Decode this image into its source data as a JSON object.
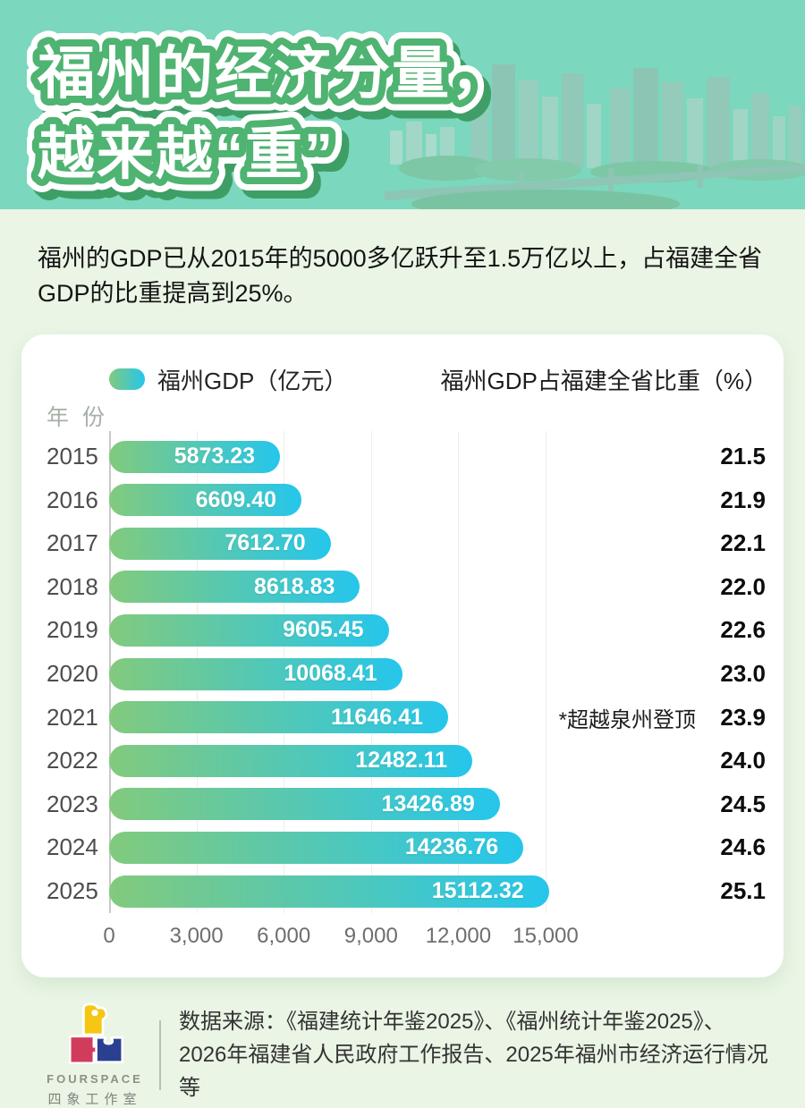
{
  "page": {
    "bg_color": "#eaf5e5"
  },
  "header": {
    "title_line1": "福州的经济分量，",
    "title_line2": "越来越“重”",
    "bg_color": "#7bd7bd",
    "plate_color": "#4fb371",
    "shadow_color": "#3f9e66"
  },
  "intro": {
    "text": "福州的GDP已从2015年的5000多亿跃升至1.5万亿以上，占福建全省GDP的比重提高到25%。"
  },
  "chart_data": {
    "type": "bar",
    "orientation": "horizontal",
    "title": "",
    "legend_label": "福州GDP（亿元）",
    "secondary_header": "福州GDP占福建全省比重（%）",
    "y_axis_title": "年 份",
    "x_ticks": [
      "0",
      "3,000",
      "6,000",
      "9,000",
      "12,000",
      "15,000"
    ],
    "x_tick_values": [
      0,
      3000,
      6000,
      9000,
      12000,
      15000
    ],
    "xlim": [
      0,
      15000
    ],
    "grid": true,
    "legend_position": "top-left",
    "categories": [
      "2015",
      "2016",
      "2017",
      "2018",
      "2019",
      "2020",
      "2021",
      "2022",
      "2023",
      "2024",
      "2025"
    ],
    "series": [
      {
        "name": "福州GDP（亿元）",
        "values": [
          5873.23,
          6609.4,
          7612.7,
          8618.83,
          9605.45,
          10068.41,
          11646.41,
          12482.11,
          13426.89,
          14236.76,
          15112.32
        ]
      },
      {
        "name": "福州GDP占福建全省比重（%）",
        "values": [
          21.5,
          21.9,
          22.1,
          22.0,
          22.6,
          23.0,
          23.9,
          24.0,
          24.5,
          24.6,
          25.1
        ]
      }
    ],
    "rows": [
      {
        "year": "2015",
        "gdp": "5873.23",
        "pct": "21.5",
        "annotation": ""
      },
      {
        "year": "2016",
        "gdp": "6609.40",
        "pct": "21.9",
        "annotation": ""
      },
      {
        "year": "2017",
        "gdp": "7612.70",
        "pct": "22.1",
        "annotation": ""
      },
      {
        "year": "2018",
        "gdp": "8618.83",
        "pct": "22.0",
        "annotation": ""
      },
      {
        "year": "2019",
        "gdp": "9605.45",
        "pct": "22.6",
        "annotation": ""
      },
      {
        "year": "2020",
        "gdp": "10068.41",
        "pct": "23.0",
        "annotation": ""
      },
      {
        "year": "2021",
        "gdp": "11646.41",
        "pct": "23.9",
        "annotation": "*超越泉州登顶"
      },
      {
        "year": "2022",
        "gdp": "12482.11",
        "pct": "24.0",
        "annotation": ""
      },
      {
        "year": "2023",
        "gdp": "13426.89",
        "pct": "24.5",
        "annotation": ""
      },
      {
        "year": "2024",
        "gdp": "14236.76",
        "pct": "24.6",
        "annotation": ""
      },
      {
        "year": "2025",
        "gdp": "15112.32",
        "pct": "25.1",
        "annotation": ""
      }
    ],
    "bar_gradient": [
      "#82ca7d",
      "#25c6ec"
    ]
  },
  "footer": {
    "logo_name": "FOURSPACE",
    "logo_subname": "四象工作室",
    "source_text": "数据来源：《福建统计年鉴2025》、《福州统计年鉴2025》、2026年福建省人民政府工作报告、2025年福州市经济运行情况等"
  }
}
